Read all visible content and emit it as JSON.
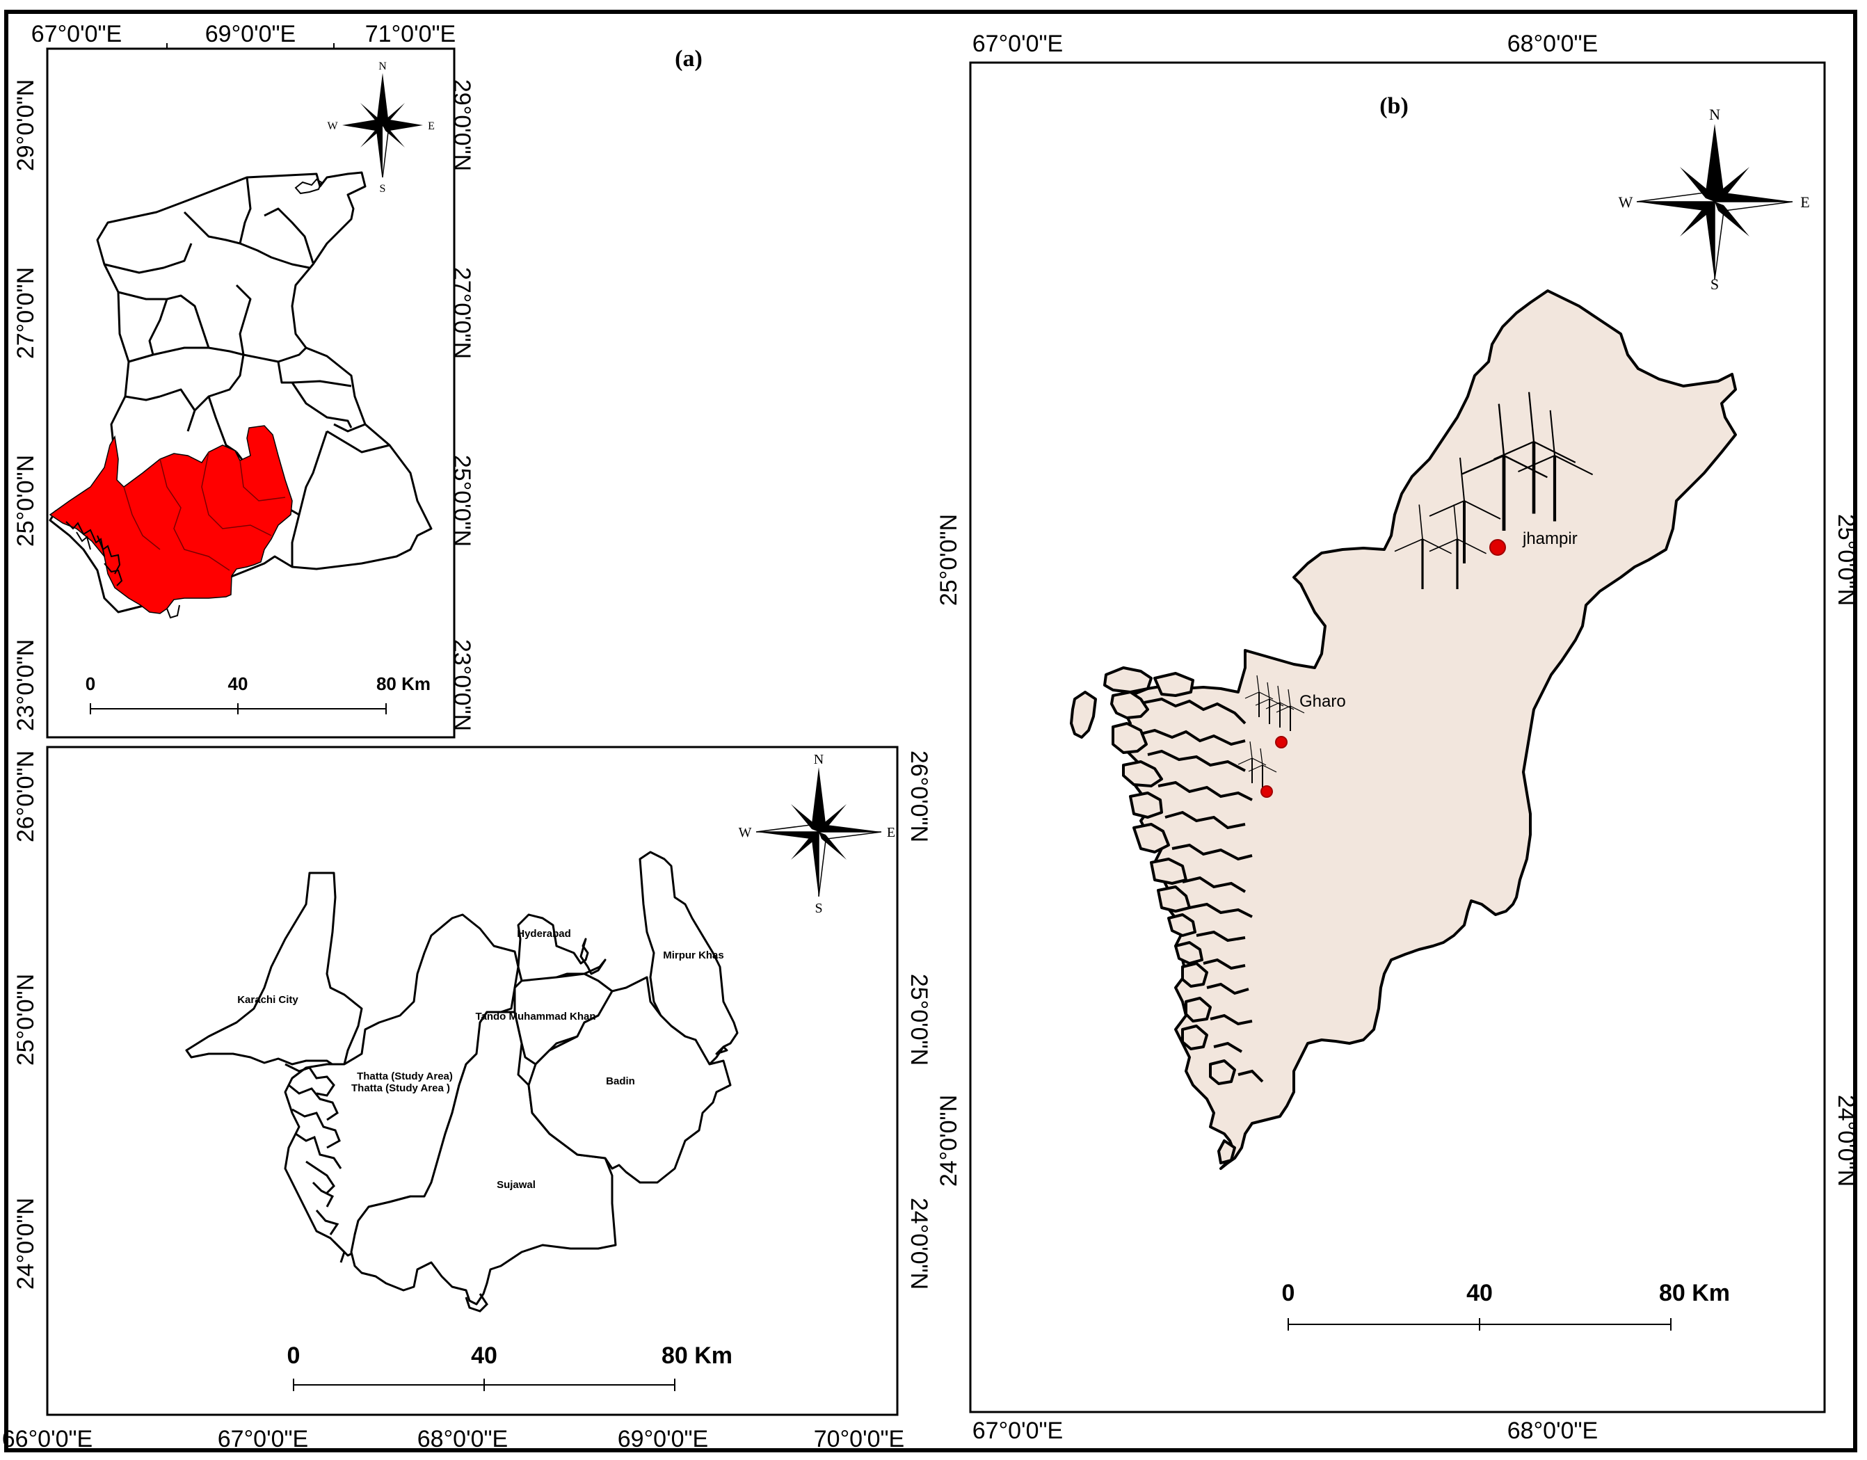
{
  "panels": {
    "a": {
      "label": "(a)",
      "top_ticks": [
        "67°0'0\"E",
        "69°0'0\"E",
        "71°0'0\"E"
      ],
      "left_ticks": [
        "29°0'0\"N",
        "27°0'0\"N",
        "25°0'0\"N",
        "23°0'0\"N"
      ],
      "right_ticks": [
        "29°0'0\"N",
        "27°0'0\"N",
        "25°0'0\"N",
        "23°0'0\"N"
      ],
      "compass": {
        "n": "N",
        "s": "S",
        "e": "E",
        "w": "W"
      },
      "scale": {
        "zero": "0",
        "mid": "40",
        "end": "80 Km"
      },
      "highlight_color": "#ff0000"
    },
    "inset": {
      "bottom_ticks": [
        "66°0'0\"E",
        "67°0'0\"E",
        "68°0'0\"E",
        "69°0'0\"E",
        "70°0'0\"E"
      ],
      "left_ticks": [
        "26°0'0\"N",
        "25°0'0\"N",
        "24°0'0\"N"
      ],
      "right_ticks": [
        "26°0'0\"N",
        "25°0'0\"N",
        "24°0'0\"N"
      ],
      "compass": {
        "n": "N",
        "s": "S",
        "e": "E",
        "w": "W"
      },
      "districts": {
        "hyderabad": "Hyderabad",
        "mirpur_khas": "Mirpur Khas",
        "karachi": "Karachi City",
        "tando": "Tando Muhammad Khan",
        "thatta1": "Thatta (Study Area)",
        "thatta2": "Thatta (Study Area )",
        "badin": "Badin",
        "sujawal": "Sujawal"
      },
      "scale": {
        "zero": "0",
        "mid": "40",
        "end": "80 Km"
      }
    },
    "b": {
      "label": "(b)",
      "top_ticks": [
        "67°0'0\"E",
        "68°0'0\"E"
      ],
      "bottom_ticks": [
        "67°0'0\"E",
        "68°0'0\"E"
      ],
      "left_ticks": [
        "25°0'0\"N",
        "24°0'0\"N"
      ],
      "right_ticks": [
        "25°0'0\"N",
        "24°0'0\"N"
      ],
      "compass": {
        "n": "N",
        "s": "S",
        "e": "E",
        "w": "W"
      },
      "places": {
        "jhampir": "jhampir",
        "gharo": "Gharo"
      },
      "scale": {
        "zero": "0",
        "mid": "40",
        "end": "80 Km"
      },
      "land_color": "#f2e6dd",
      "marker_color": "#e00000"
    }
  }
}
